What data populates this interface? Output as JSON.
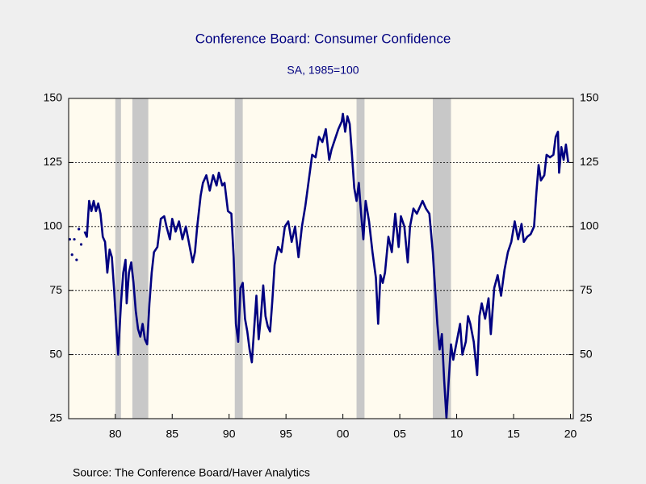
{
  "chart_data": {
    "type": "line",
    "title": "Conference Board: Consumer Confidence",
    "subtitle": "SA, 1985=100",
    "source": "Source:  The Conference Board/Haver Analytics",
    "xlim": [
      1975.9,
      2020.25
    ],
    "xticks": [
      {
        "value": 1980,
        "label": "80"
      },
      {
        "value": 1985,
        "label": "85"
      },
      {
        "value": 1990,
        "label": "90"
      },
      {
        "value": 1995,
        "label": "95"
      },
      {
        "value": 2000,
        "label": "00"
      },
      {
        "value": 2005,
        "label": "05"
      },
      {
        "value": 2010,
        "label": "10"
      },
      {
        "value": 2015,
        "label": "15"
      },
      {
        "value": 2020,
        "label": "20"
      }
    ],
    "ylim": [
      25,
      150
    ],
    "yticks": [
      25,
      50,
      75,
      100,
      125,
      150
    ],
    "grid": true,
    "recessions": [
      [
        1980.0,
        1980.5
      ],
      [
        1981.5,
        1982.9
      ],
      [
        1990.5,
        1991.2
      ],
      [
        2001.2,
        2001.9
      ],
      [
        2007.9,
        2009.5
      ]
    ],
    "recession_color": "#c8c8c8",
    "series": [
      {
        "name": "Consumer Confidence",
        "color": "#000080",
        "x": [
          1976.0,
          1976.1,
          1976.2,
          1976.3,
          1976.4,
          1976.5,
          1976.6,
          1976.7,
          1976.8,
          1976.9,
          1977.0,
          1977.15,
          1977.3,
          1977.5,
          1977.7,
          1977.9,
          1978.1,
          1978.3,
          1978.5,
          1978.7,
          1978.9,
          1979.1,
          1979.3,
          1979.5,
          1979.7,
          1979.9,
          1980.1,
          1980.25,
          1980.5,
          1980.7,
          1980.9,
          1981.0,
          1981.2,
          1981.4,
          1981.6,
          1981.8,
          1982.0,
          1982.2,
          1982.4,
          1982.6,
          1982.8,
          1983.0,
          1983.2,
          1983.4,
          1983.7,
          1984.0,
          1984.3,
          1984.5,
          1984.8,
          1985.0,
          1985.3,
          1985.6,
          1985.9,
          1986.2,
          1986.5,
          1986.8,
          1987.0,
          1987.2,
          1987.5,
          1987.7,
          1988.0,
          1988.3,
          1988.6,
          1988.9,
          1989.1,
          1989.4,
          1989.6,
          1989.9,
          1990.2,
          1990.4,
          1990.6,
          1990.8,
          1991.0,
          1991.2,
          1991.4,
          1991.6,
          1991.8,
          1992.0,
          1992.2,
          1992.4,
          1992.6,
          1992.8,
          1993.0,
          1993.2,
          1993.4,
          1993.6,
          1993.8,
          1994.0,
          1994.3,
          1994.6,
          1994.9,
          1995.2,
          1995.5,
          1995.8,
          1996.1,
          1996.4,
          1996.7,
          1997.0,
          1997.3,
          1997.6,
          1997.9,
          1998.2,
          1998.5,
          1998.8,
          1999.0,
          1999.3,
          1999.6,
          1999.9,
          2000.0,
          2000.2,
          2000.4,
          2000.6,
          2000.8,
          2001.0,
          2001.2,
          2001.4,
          2001.6,
          2001.8,
          2002.0,
          2002.3,
          2002.6,
          2002.9,
          2003.1,
          2003.3,
          2003.5,
          2003.7,
          2004.0,
          2004.3,
          2004.6,
          2004.9,
          2005.1,
          2005.4,
          2005.7,
          2005.9,
          2006.2,
          2006.5,
          2006.8,
          2007.0,
          2007.3,
          2007.6,
          2007.9,
          2008.1,
          2008.3,
          2008.5,
          2008.7,
          2008.9,
          2009.1,
          2009.3,
          2009.5,
          2009.7,
          2010.0,
          2010.3,
          2010.5,
          2010.8,
          2011.0,
          2011.2,
          2011.5,
          2011.8,
          2012.0,
          2012.2,
          2012.5,
          2012.8,
          2013.0,
          2013.3,
          2013.6,
          2013.9,
          2014.2,
          2014.5,
          2014.8,
          2015.1,
          2015.4,
          2015.7,
          2015.9,
          2016.2,
          2016.5,
          2016.8,
          2017.0,
          2017.2,
          2017.4,
          2017.7,
          2017.9,
          2018.2,
          2018.5,
          2018.7,
          2018.9,
          2019.0,
          2019.2,
          2019.4,
          2019.6,
          2019.8
        ],
        "values": [
          95,
          null,
          89,
          null,
          95,
          null,
          87,
          null,
          99,
          null,
          93,
          null,
          98,
          96,
          110,
          106,
          110,
          106,
          109,
          105,
          96,
          94,
          82,
          91,
          88,
          75,
          60,
          50,
          70,
          82,
          87,
          70,
          82,
          86,
          78,
          67,
          60,
          57,
          62,
          56,
          54,
          70,
          82,
          90,
          92,
          103,
          104,
          100,
          95,
          103,
          98,
          102,
          95,
          100,
          93,
          86,
          90,
          100,
          112,
          117,
          120,
          114,
          120,
          116,
          121,
          116,
          117,
          106,
          105,
          88,
          62,
          55,
          76,
          78,
          64,
          59,
          52,
          47,
          60,
          73,
          56,
          65,
          77,
          65,
          61,
          59,
          71,
          85,
          92,
          90,
          100,
          102,
          94,
          100,
          88,
          100,
          108,
          118,
          128,
          127,
          135,
          133,
          138,
          126,
          130,
          134,
          138,
          141,
          144,
          137,
          143,
          140,
          128,
          115,
          110,
          117,
          105,
          95,
          110,
          102,
          90,
          80,
          62,
          81,
          78,
          82,
          96,
          90,
          105,
          92,
          104,
          100,
          86,
          100,
          107,
          105,
          108,
          110,
          107,
          105,
          90,
          76,
          62,
          52,
          58,
          40,
          25.3,
          40,
          54,
          48,
          55,
          62,
          50,
          55,
          65,
          62,
          55,
          42,
          65,
          70,
          64,
          72,
          58,
          76,
          81,
          73,
          83,
          90,
          94,
          102,
          95,
          101,
          94,
          96,
          97,
          100,
          113,
          124,
          118,
          120,
          128,
          127,
          128,
          135,
          137,
          121,
          131,
          126,
          132,
          125
        ]
      }
    ]
  }
}
